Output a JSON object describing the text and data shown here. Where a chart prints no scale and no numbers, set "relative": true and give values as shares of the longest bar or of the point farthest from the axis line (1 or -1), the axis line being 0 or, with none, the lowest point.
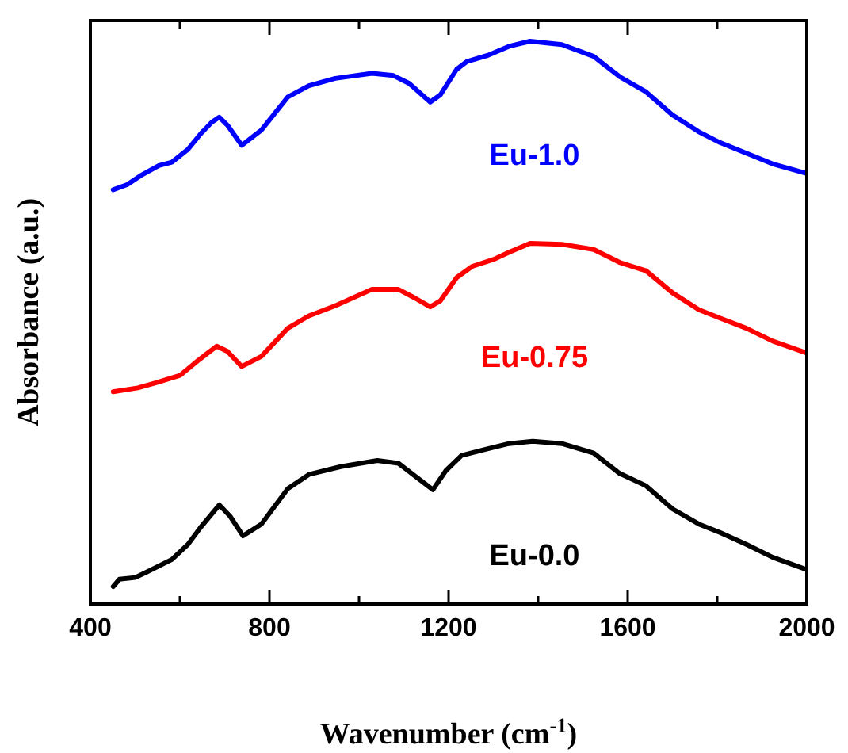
{
  "chart_data": {
    "type": "line",
    "xlabel": "Wavenumber (cm$^{-1}$)",
    "ylabel": "Absorbance (a.u.)",
    "relative": true,
    "xlim": [
      400,
      2000
    ],
    "xticks": [
      400,
      {
        "value": 600,
        "label": null
      },
      800,
      {
        "value": 1000,
        "label": null
      },
      1200,
      {
        "value": 1400,
        "label": null
      },
      1600,
      {
        "value": 1800,
        "label": null
      },
      2000
    ],
    "grid": false,
    "marker": "none",
    "line_style": "solid",
    "series": [
      {
        "name": "Eu-1.0",
        "color": "#0000ff",
        "x": [
          451,
          482,
          512,
          553,
          582,
          618,
          647,
          671,
          688,
          706,
          738,
          782,
          841,
          888,
          947,
          1029,
          1077,
          1112,
          1159,
          1182,
          1218,
          1241,
          1288,
          1335,
          1382,
          1453,
          1524,
          1582,
          1641,
          1700,
          1759,
          1806,
          1865,
          1924,
          2000
        ],
        "values": [
          0.736,
          0.745,
          0.761,
          0.779,
          0.785,
          0.808,
          0.836,
          0.856,
          0.865,
          0.851,
          0.815,
          0.842,
          0.901,
          0.921,
          0.934,
          0.943,
          0.939,
          0.925,
          0.892,
          0.905,
          0.95,
          0.964,
          0.975,
          0.991,
          1.0,
          0.994,
          0.973,
          0.937,
          0.91,
          0.869,
          0.839,
          0.82,
          0.801,
          0.782,
          0.765
        ]
      },
      {
        "name": "Eu-0.75",
        "color": "#ff0000",
        "x": [
          451,
          506,
          547,
          600,
          641,
          682,
          706,
          738,
          782,
          841,
          888,
          947,
          1029,
          1088,
          1124,
          1159,
          1182,
          1218,
          1253,
          1300,
          1335,
          1382,
          1453,
          1524,
          1582,
          1641,
          1700,
          1759,
          1806,
          1865,
          1924,
          2000
        ],
        "values": [
          0.377,
          0.384,
          0.393,
          0.406,
          0.433,
          0.458,
          0.449,
          0.422,
          0.44,
          0.49,
          0.512,
          0.53,
          0.559,
          0.559,
          0.544,
          0.528,
          0.539,
          0.58,
          0.6,
          0.612,
          0.625,
          0.641,
          0.639,
          0.63,
          0.607,
          0.592,
          0.553,
          0.523,
          0.508,
          0.49,
          0.467,
          0.446
        ]
      },
      {
        "name": "Eu-0.0",
        "color": "#000000",
        "x": [
          451,
          465,
          500,
          524,
          582,
          618,
          647,
          688,
          712,
          741,
          782,
          841,
          888,
          959,
          1041,
          1088,
          1124,
          1165,
          1194,
          1229,
          1288,
          1335,
          1388,
          1453,
          1524,
          1582,
          1641,
          1700,
          1759,
          1806,
          1865,
          1924,
          2000
        ],
        "values": [
          0.031,
          0.044,
          0.047,
          0.056,
          0.079,
          0.106,
          0.137,
          0.176,
          0.156,
          0.121,
          0.142,
          0.205,
          0.23,
          0.244,
          0.255,
          0.25,
          0.228,
          0.203,
          0.237,
          0.264,
          0.276,
          0.285,
          0.289,
          0.285,
          0.268,
          0.232,
          0.21,
          0.169,
          0.142,
          0.127,
          0.106,
          0.083,
          0.061
        ]
      }
    ]
  }
}
